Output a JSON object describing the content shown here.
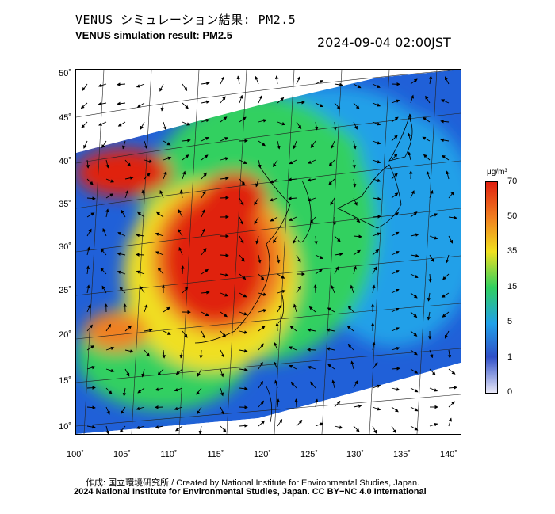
{
  "header": {
    "title_jp": "VENUS シミュレーション結果: PM2.5",
    "title_en": "VENUS simulation result: PM2.5",
    "timestamp": "2024-09-04 02:00JST"
  },
  "axes": {
    "lat_ticks": [
      "50˚",
      "45˚",
      "40˚",
      "35˚",
      "30˚",
      "25˚",
      "20˚",
      "15˚",
      "10˚"
    ],
    "lon_ticks": [
      "100˚",
      "105˚",
      "110˚",
      "115˚",
      "120˚",
      "125˚",
      "130˚",
      "135˚",
      "140˚"
    ]
  },
  "colorbar": {
    "unit": "μg/m³",
    "labels": [
      "70",
      "50",
      "35",
      "15",
      "5",
      "1",
      "0"
    ],
    "colors": [
      "#e8e8f8",
      "#3050c8",
      "#20a0e8",
      "#30d060",
      "#f0e020",
      "#f08020",
      "#e02010"
    ]
  },
  "footer": {
    "credit": "作成: 国立環境研究所 / Created by National Institute for Environmental Studies, Japan.",
    "license": "2024 National Institute for Environmental Studies, Japan. CC BY−NC 4.0 International"
  }
}
